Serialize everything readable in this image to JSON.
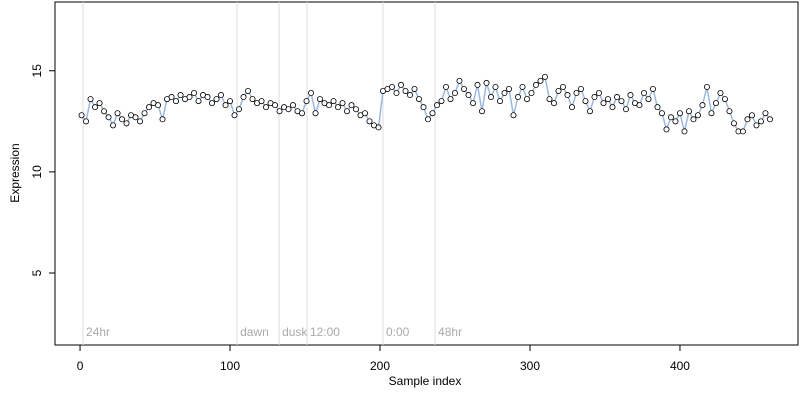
{
  "chart_data": {
    "type": "scatter",
    "x_label": "Sample index",
    "y_label": "Expression",
    "xlim": [
      -16.7,
      478.7
    ],
    "ylim": [
      1.44,
      18.4
    ],
    "xticks": [
      0,
      100,
      200,
      300,
      400
    ],
    "yticks": [
      5,
      10,
      15
    ],
    "line_color": "#9bb8de",
    "point_fill": "#ffffff",
    "point_stroke": "#000000",
    "annotations": [
      {
        "x": 2,
        "label": "24hr"
      },
      {
        "x": 104.7,
        "label": "dawn"
      },
      {
        "x": 132.7,
        "label": "dusk"
      },
      {
        "x": 151.3,
        "label": "12:00"
      },
      {
        "x": 202,
        "label": "0:00"
      },
      {
        "x": 236.7,
        "label": "48hr"
      }
    ],
    "x": [
      1,
      4,
      7,
      10,
      13,
      16,
      19,
      22,
      25,
      28,
      31,
      34,
      37,
      40,
      43,
      46,
      49,
      52,
      55,
      58,
      61,
      64,
      67,
      70,
      73,
      76,
      79,
      82,
      85,
      88,
      91,
      94,
      97,
      100,
      103,
      106,
      109,
      112,
      115,
      118,
      121,
      124,
      127,
      130,
      133,
      136,
      139,
      142,
      145,
      148,
      151,
      154,
      157,
      160,
      163,
      166,
      169,
      172,
      175,
      178,
      181,
      184,
      187,
      190,
      193,
      196,
      199,
      202,
      205,
      208,
      211,
      214,
      217,
      220,
      223,
      226,
      229,
      232,
      235,
      238,
      241,
      244,
      247,
      250,
      253,
      256,
      259,
      262,
      265,
      268,
      271,
      274,
      277,
      280,
      283,
      286,
      289,
      292,
      295,
      298,
      301,
      304,
      307,
      310,
      313,
      316,
      319,
      322,
      325,
      328,
      331,
      334,
      337,
      340,
      343,
      346,
      349,
      352,
      355,
      358,
      361,
      364,
      367,
      370,
      373,
      376,
      379,
      382,
      385,
      388,
      391,
      394,
      397,
      400,
      403,
      406,
      409,
      412,
      415,
      418,
      421,
      424,
      427,
      430,
      433,
      436,
      439,
      442,
      445,
      448,
      451,
      454,
      457,
      460
    ],
    "values": [
      12.8,
      12.5,
      13.6,
      13.2,
      13.4,
      13.0,
      12.7,
      12.3,
      12.9,
      12.6,
      12.4,
      12.8,
      12.7,
      12.5,
      12.9,
      13.2,
      13.4,
      13.3,
      12.6,
      13.6,
      13.7,
      13.5,
      13.8,
      13.6,
      13.7,
      13.9,
      13.5,
      13.8,
      13.7,
      13.4,
      13.6,
      13.8,
      13.3,
      13.5,
      12.8,
      13.1,
      13.7,
      14.0,
      13.6,
      13.4,
      13.5,
      13.2,
      13.4,
      13.3,
      13.0,
      13.2,
      13.1,
      13.3,
      13.0,
      12.9,
      13.5,
      13.9,
      12.9,
      13.6,
      13.4,
      13.3,
      13.5,
      13.2,
      13.4,
      13.0,
      13.3,
      13.1,
      12.8,
      12.9,
      12.5,
      12.3,
      12.2,
      14.0,
      14.1,
      14.2,
      13.9,
      14.3,
      14.0,
      13.8,
      14.1,
      13.6,
      13.2,
      12.6,
      12.9,
      13.3,
      13.5,
      14.2,
      13.6,
      13.9,
      14.5,
      14.1,
      13.8,
      13.4,
      14.3,
      13.0,
      14.4,
      13.7,
      14.2,
      13.5,
      13.9,
      14.1,
      12.8,
      13.7,
      14.2,
      13.6,
      13.9,
      14.3,
      14.5,
      14.7,
      13.6,
      13.4,
      14.0,
      14.2,
      13.8,
      13.2,
      13.9,
      14.1,
      13.5,
      13.0,
      13.7,
      13.9,
      13.4,
      13.6,
      13.2,
      13.7,
      13.5,
      13.1,
      13.8,
      13.4,
      13.3,
      13.9,
      13.6,
      14.1,
      13.2,
      12.9,
      12.1,
      12.7,
      12.5,
      12.9,
      12.0,
      13.0,
      12.6,
      12.8,
      13.3,
      14.2,
      12.9,
      13.4,
      13.9,
      13.6,
      13.0,
      12.4,
      12.0,
      12.0,
      12.6,
      12.8,
      12.3,
      12.5,
      12.9,
      12.6
    ]
  }
}
